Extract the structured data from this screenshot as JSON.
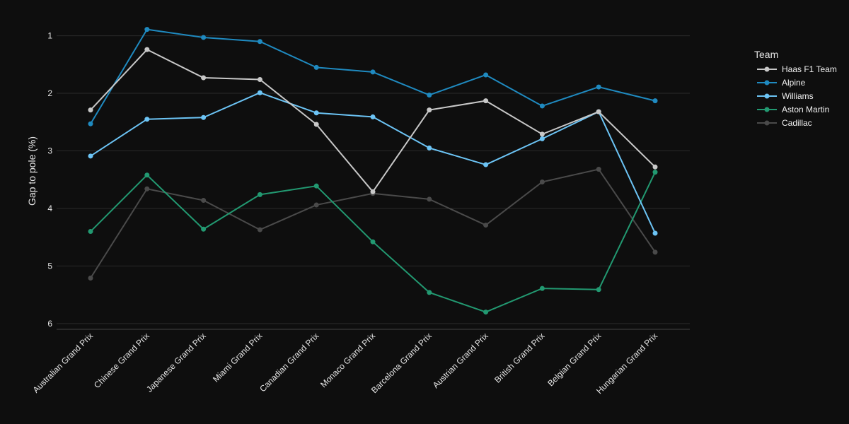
{
  "chart_data": {
    "type": "line",
    "title": "",
    "xlabel": "",
    "ylabel": "Gap to pole (%)",
    "y_reversed": true,
    "ylim": [
      6.1,
      0.6
    ],
    "yticks": [
      1,
      2,
      3,
      4,
      5,
      6
    ],
    "grid": true,
    "legend": {
      "title": "Team",
      "placement": "right"
    },
    "categories": [
      "Australian Grand Prix",
      "Chinese Grand Prix",
      "Japanese Grand Prix",
      "Miami Grand Prix",
      "Canadian Grand Prix",
      "Monaco Grand Prix",
      "Barcelona Grand Prix",
      "Austrian Grand Prix",
      "British Grand Prix",
      "Belgian Grand Prix",
      "Hungarian Grand Prix"
    ],
    "series": [
      {
        "name": "Haas F1 Team",
        "color": "#c8c8c8",
        "values": [
          2.29,
          1.24,
          1.73,
          1.76,
          2.54,
          3.71,
          2.29,
          2.13,
          2.71,
          2.32,
          3.28
        ]
      },
      {
        "name": "Alpine",
        "color": "#1f8ac0",
        "values": [
          2.53,
          0.89,
          1.03,
          1.1,
          1.55,
          1.63,
          2.03,
          1.68,
          2.22,
          1.89,
          2.13
        ]
      },
      {
        "name": "Williams",
        "color": "#6cc4f5",
        "values": [
          3.09,
          2.45,
          2.42,
          1.99,
          2.34,
          2.41,
          2.95,
          3.24,
          2.79,
          2.32,
          4.43
        ]
      },
      {
        "name": "Aston Martin",
        "color": "#229971",
        "values": [
          4.4,
          3.42,
          4.36,
          3.76,
          3.61,
          4.58,
          5.46,
          5.8,
          5.39,
          5.41,
          3.37
        ]
      },
      {
        "name": "Cadillac",
        "color": "#4a4a4a",
        "values": [
          5.21,
          3.66,
          3.86,
          4.37,
          3.94,
          3.74,
          3.84,
          4.29,
          3.54,
          3.32,
          4.76
        ]
      }
    ]
  }
}
